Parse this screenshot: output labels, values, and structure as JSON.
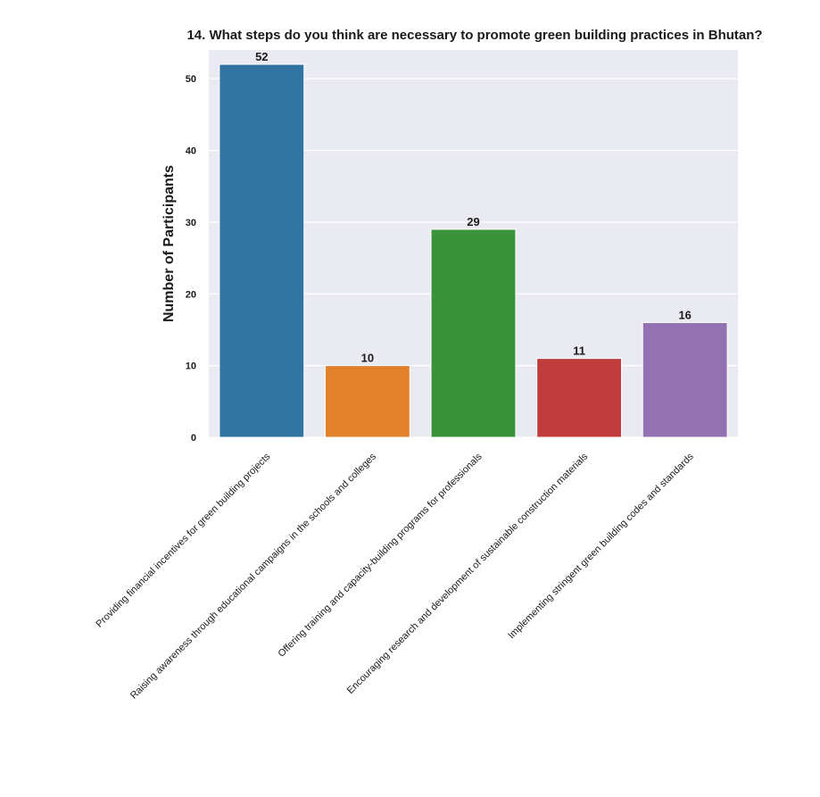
{
  "chart_data": {
    "type": "bar",
    "title": "14. What steps do you think are necessary to promote green building practices in Bhutan?",
    "xlabel": "",
    "ylabel": "Number of Participants",
    "ylim": [
      0,
      54
    ],
    "yticks": [
      0,
      10,
      20,
      30,
      40,
      50
    ],
    "grid": true,
    "legend": "none",
    "categories": [
      "Providing financial incentives for green building projects",
      "Raising awareness through educational campaigns in the schools and colleges",
      "Offering training and capacity-building programs for professionals",
      "Encouraging research and development of sustainable construction materials",
      "Implementing stringent green building codes and standards"
    ],
    "values": [
      52,
      10,
      29,
      11,
      16
    ],
    "colors": [
      "#3274a1",
      "#e1812c",
      "#3a923a",
      "#c03d3e",
      "#9372b2"
    ],
    "background": "#eaeaf2"
  }
}
